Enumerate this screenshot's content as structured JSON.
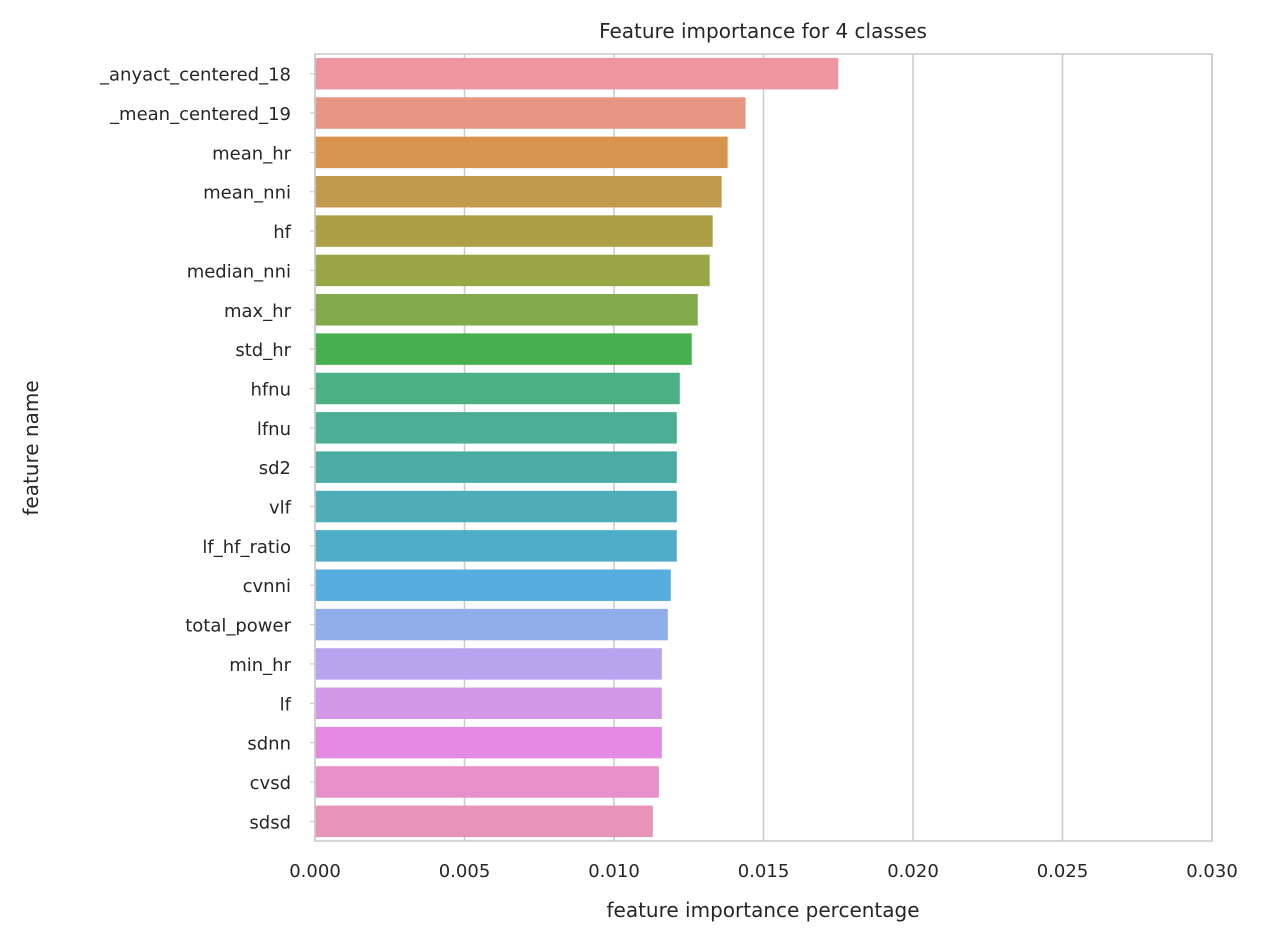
{
  "chart_data": {
    "type": "bar",
    "orientation": "horizontal",
    "title": "Feature importance for 4 classes",
    "xlabel": "feature importance percentage",
    "ylabel": "feature name",
    "xlim": [
      0.0,
      0.03
    ],
    "xticks": [
      0.0,
      0.005,
      0.01,
      0.015,
      0.02,
      0.025,
      0.03
    ],
    "xtick_labels": [
      "0.000",
      "0.005",
      "0.010",
      "0.015",
      "0.020",
      "0.025",
      "0.030"
    ],
    "grid": true,
    "legend": "none",
    "categories": [
      "_anyact_centered_18",
      "_mean_centered_19",
      "mean_hr",
      "mean_nni",
      "hf",
      "median_nni",
      "max_hr",
      "std_hr",
      "hfnu",
      "lfnu",
      "sd2",
      "vlf",
      "lf_hf_ratio",
      "cvnni",
      "total_power",
      "min_hr",
      "lf",
      "sdnn",
      "cvsd",
      "sdsd"
    ],
    "values": [
      0.0175,
      0.0144,
      0.0138,
      0.0136,
      0.0133,
      0.0132,
      0.0128,
      0.0126,
      0.0122,
      0.0121,
      0.0121,
      0.0121,
      0.0121,
      0.0119,
      0.0118,
      0.0116,
      0.0116,
      0.0116,
      0.0115,
      0.0113
    ],
    "colors": [
      "#ee96a0",
      "#e89684",
      "#d7944e",
      "#c19a4e",
      "#ad9f45",
      "#99a645",
      "#82aa4b",
      "#47af4f",
      "#4bb185",
      "#4bae97",
      "#4baca5",
      "#4fadb8",
      "#50adc8",
      "#55aedf",
      "#92aeea",
      "#b7a4ee",
      "#d399e8",
      "#e48ae3",
      "#e88fca",
      "#e893b9"
    ]
  }
}
